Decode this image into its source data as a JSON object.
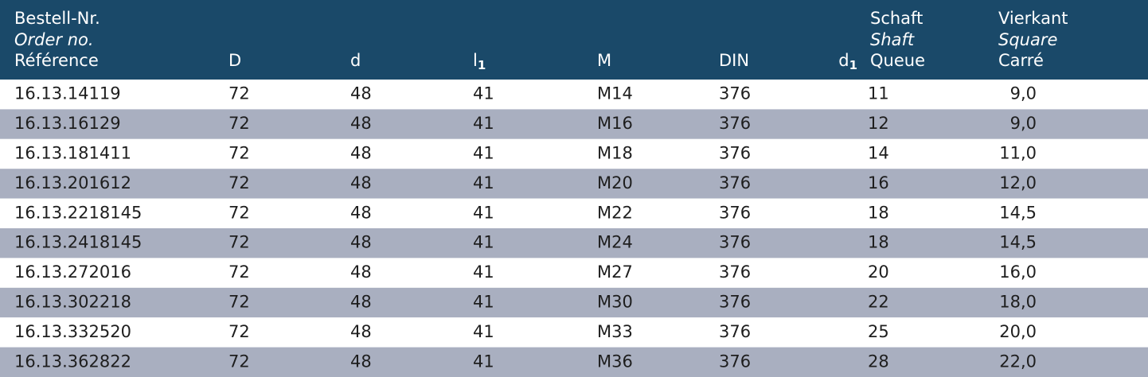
{
  "header": {
    "columns": [
      {
        "lines": [
          "Bestell-Nr.",
          "Order no.",
          "Référence"
        ]
      },
      {
        "lines": [
          "D"
        ]
      },
      {
        "lines": [
          "d"
        ]
      },
      {
        "lines": [
          "l"
        ],
        "sub": "1"
      },
      {
        "lines": [
          "M"
        ]
      },
      {
        "lines": [
          "DIN"
        ]
      },
      {
        "lines": [
          "d"
        ],
        "sub": "1"
      },
      {
        "lines": [
          "Schaft",
          "Shaft",
          "Queue"
        ]
      },
      {
        "lines": [
          "Vierkant",
          "Square",
          "Carré"
        ]
      }
    ]
  },
  "table": {
    "rows": [
      [
        "16.13.14119",
        "72",
        "48",
        "41",
        "M14",
        "376",
        "11",
        "9,0"
      ],
      [
        "16.13.16129",
        "72",
        "48",
        "41",
        "M16",
        "376",
        "12",
        "9,0"
      ],
      [
        "16.13.181411",
        "72",
        "48",
        "41",
        "M18",
        "376",
        "14",
        "11,0"
      ],
      [
        "16.13.201612",
        "72",
        "48",
        "41",
        "M20",
        "376",
        "16",
        "12,0"
      ],
      [
        "16.13.2218145",
        "72",
        "48",
        "41",
        "M22",
        "376",
        "18",
        "14,5"
      ],
      [
        "16.13.2418145",
        "72",
        "48",
        "41",
        "M24",
        "376",
        "18",
        "14,5"
      ],
      [
        "16.13.272016",
        "72",
        "48",
        "41",
        "M27",
        "376",
        "20",
        "16,0"
      ],
      [
        "16.13.302218",
        "72",
        "48",
        "41",
        "M30",
        "376",
        "22",
        "18,0"
      ],
      [
        "16.13.332520",
        "72",
        "48",
        "41",
        "M33",
        "376",
        "25",
        "20,0"
      ],
      [
        "16.13.362822",
        "72",
        "48",
        "41",
        "M36",
        "376",
        "28",
        "22,0"
      ]
    ]
  }
}
